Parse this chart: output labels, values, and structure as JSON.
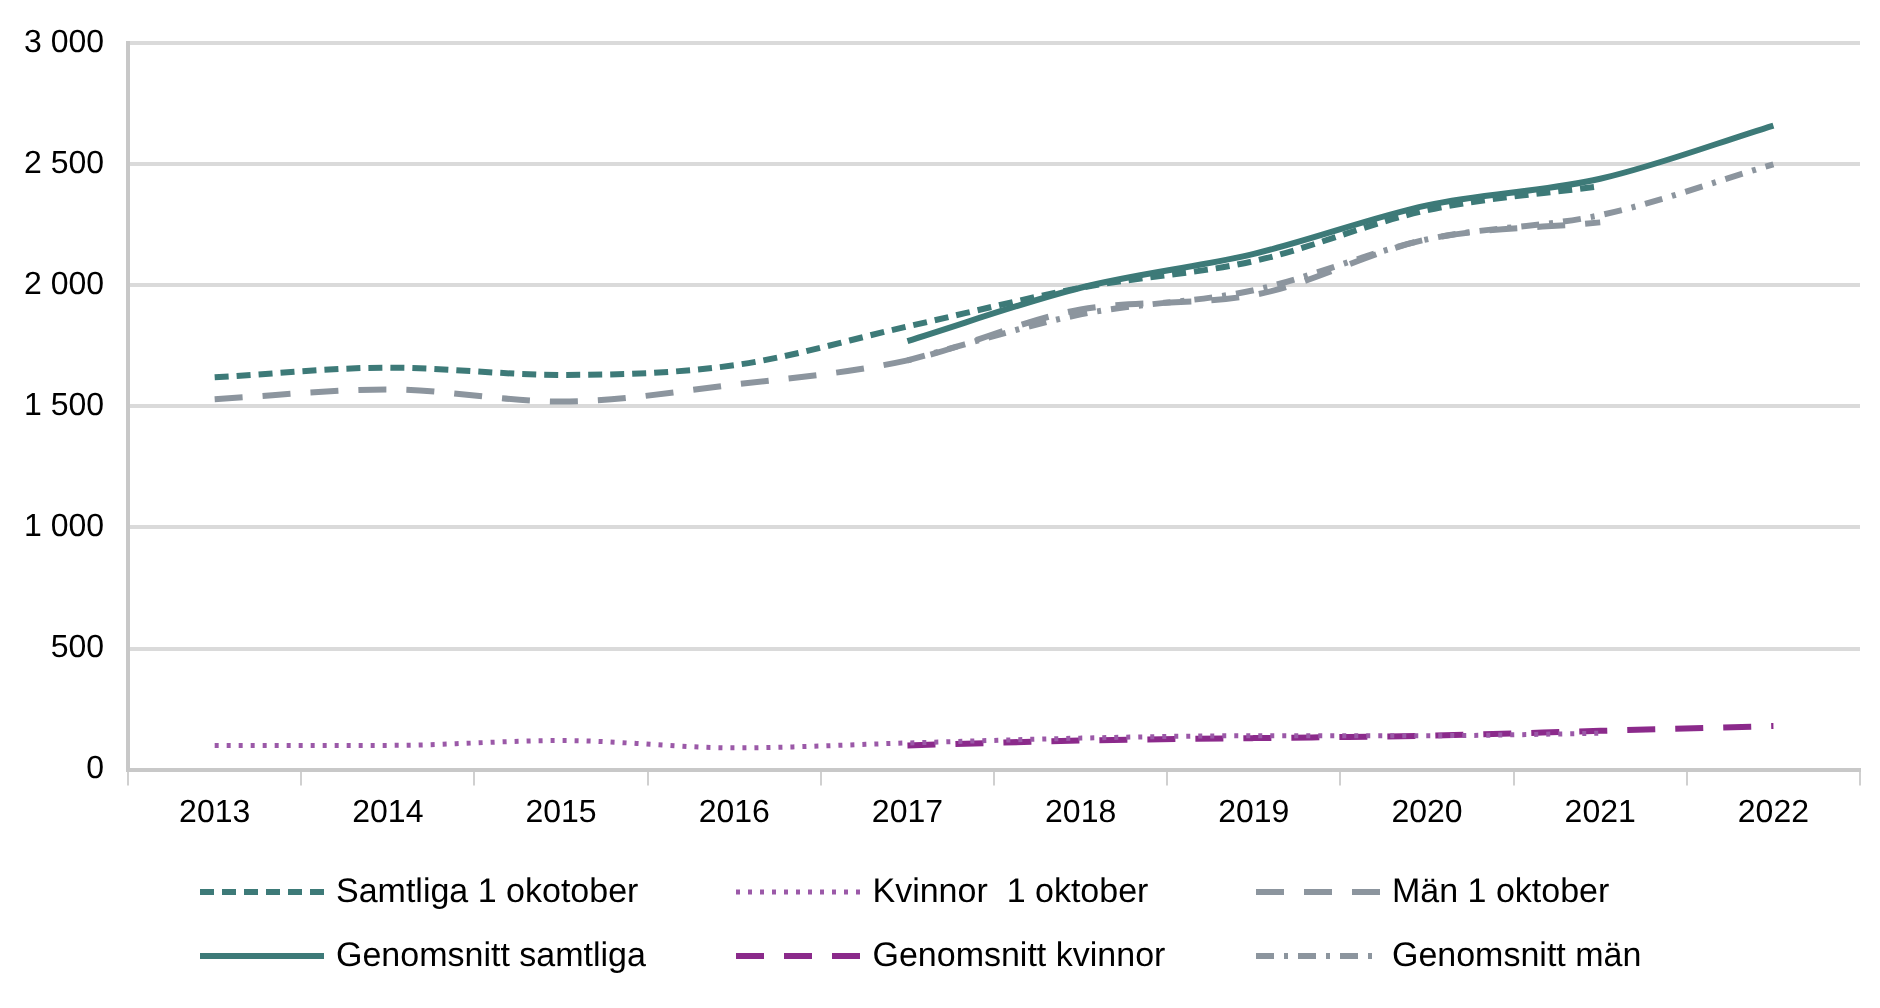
{
  "chart_data": {
    "type": "line",
    "categories": [
      "2013",
      "2014",
      "2015",
      "2016",
      "2017",
      "2018",
      "2019",
      "2020",
      "2021",
      "2022"
    ],
    "ylim": [
      0,
      3000
    ],
    "yticks": [
      {
        "value": 0,
        "label": "0"
      },
      {
        "value": 500,
        "label": "500"
      },
      {
        "value": 1000,
        "label": "1 000"
      },
      {
        "value": 1500,
        "label": "1 500"
      },
      {
        "value": 2000,
        "label": "2 000"
      },
      {
        "value": 2500,
        "label": "2 500"
      },
      {
        "value": 3000,
        "label": "3 000"
      }
    ],
    "grid": "y",
    "legend": "bottom",
    "marker": "none",
    "series": [
      {
        "name": "Samtliga 1 okotober",
        "color": "#3d7a78",
        "line_style": "dashed",
        "values": [
          1620,
          1660,
          1630,
          1670,
          1830,
          1990,
          2100,
          2310,
          2410,
          null
        ]
      },
      {
        "name": "Kvinnor  1 oktober",
        "color": "#9b59a8",
        "line_style": "dotted",
        "values": [
          100,
          100,
          120,
          90,
          110,
          130,
          140,
          140,
          150,
          null
        ]
      },
      {
        "name": "Män 1 oktober",
        "color": "#8c959e",
        "line_style": "longdash",
        "values": [
          1530,
          1570,
          1520,
          1590,
          1690,
          1900,
          1960,
          2190,
          2260,
          null
        ]
      },
      {
        "name": "Genomsnitt samtliga",
        "color": "#3d7a78",
        "line_style": "solid",
        "values": [
          null,
          null,
          null,
          null,
          1770,
          1990,
          2130,
          2330,
          2440,
          2660
        ]
      },
      {
        "name": "Genomsnitt kvinnor",
        "color": "#8b2a8b",
        "line_style": "longdash",
        "values": [
          null,
          null,
          null,
          null,
          100,
          120,
          130,
          140,
          160,
          180
        ]
      },
      {
        "name": "Genomsnitt män",
        "color": "#8c959e",
        "line_style": "dashdot",
        "values": [
          null,
          null,
          null,
          null,
          1690,
          1880,
          1980,
          2190,
          2290,
          2500
        ]
      }
    ]
  }
}
